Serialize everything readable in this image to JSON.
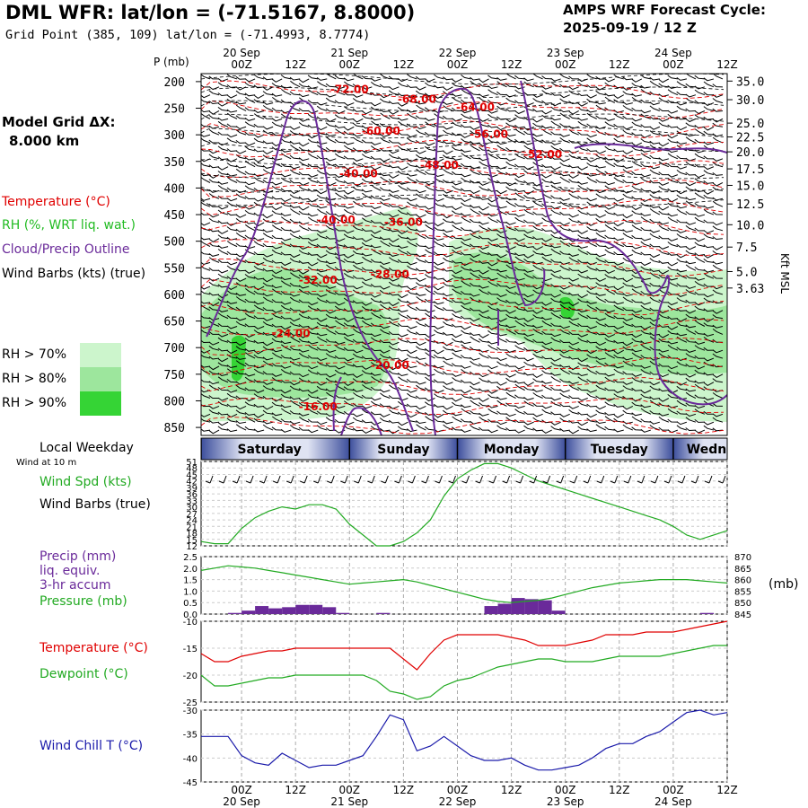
{
  "header": {
    "title": "DML WFR:  lat/lon = (-71.5167, 8.8000)",
    "grid_point": "Grid Point (385, 109) lat/lon = (-71.4993, 8.7774)",
    "cycle_title": "AMPS WRF Forecast Cycle:",
    "cycle_value": "2025-09-19 / 12  Z"
  },
  "sidebar": {
    "grid_dx_label": "Model Grid ΔX:",
    "grid_dx_value": "8.000 km",
    "legend_temperature": "Temperature (°C)",
    "legend_rh": "RH (%, WRT liq. wat.)",
    "legend_cloud": "Cloud/Precip Outline",
    "legend_wind": "Wind Barbs (kts) (true)",
    "rh70": "RH > 70%",
    "rh80": "RH > 80%",
    "rh90": "RH > 90%",
    "local_weekday": "Local Weekday",
    "wind_at_10m": "Wind at 10 m",
    "wind_speed_label": "Wind Spd (kts)",
    "wind_barbs_label": "Wind Barbs (true)",
    "precip_line1": "Precip (mm)",
    "precip_line2": "liq. equiv.",
    "precip_line3": "3-hr accum",
    "pressure_label": "Pressure (mb)",
    "pressure_unit": "(mb)",
    "temperature_label": "Temperature (°C)",
    "dewpoint_label": "Dewpoint (°C)",
    "wind_chill_label": "Wind Chill T (°C)",
    "p_axis_label": "P (mb)",
    "height_axis_label": "Kft MSL"
  },
  "colors": {
    "temperature": "#e00000",
    "rh_label": "#22bb22",
    "cloud_outline": "#6a2a9a",
    "rh70": "#ccf5cc",
    "rh80": "#9de69d",
    "rh90": "#35d435",
    "wind_speed": "#22aa22",
    "pressure": "#22aa22",
    "precip": "#6a2a9a",
    "dewpoint": "#22aa22",
    "wind_chill": "#1a1aaa"
  },
  "chart_data": {
    "type": "line",
    "time_axis": {
      "x_hours": [
        0,
        12,
        24,
        36,
        48,
        60,
        72,
        84,
        96,
        108
      ],
      "tick_labels": [
        "00Z",
        "12Z",
        "00Z",
        "12Z",
        "00Z",
        "12Z",
        "00Z",
        "12Z",
        "00Z",
        "12Z"
      ],
      "date_labels": [
        {
          "hour": 0,
          "label": "20 Sep"
        },
        {
          "hour": 24,
          "label": "21 Sep"
        },
        {
          "hour": 48,
          "label": "22 Sep"
        },
        {
          "hour": 72,
          "label": "23 Sep"
        },
        {
          "hour": 96,
          "label": "24 Sep"
        }
      ],
      "xlim": [
        -9,
        108
      ]
    },
    "weekdays": [
      {
        "name": "Saturday",
        "start": -9,
        "end": 24
      },
      {
        "name": "Sunday",
        "start": 24,
        "end": 48
      },
      {
        "name": "Monday",
        "start": 48,
        "end": 72
      },
      {
        "name": "Tuesday",
        "start": 72,
        "end": 96
      },
      {
        "name": "Wednesday",
        "start": 96,
        "end": 120
      }
    ],
    "cross_section": {
      "pressure_ticks": [
        200,
        250,
        300,
        350,
        400,
        450,
        500,
        550,
        600,
        650,
        700,
        750,
        800,
        850
      ],
      "pressure_range": [
        185,
        865
      ],
      "height_ticks": [
        {
          "label": "35.0",
          "p": 199
        },
        {
          "label": "30.0",
          "p": 234
        },
        {
          "label": "25.0",
          "p": 278
        },
        {
          "label": "22.5",
          "p": 304
        },
        {
          "label": "20.0",
          "p": 332
        },
        {
          "label": "17.5",
          "p": 364
        },
        {
          "label": "15.0",
          "p": 395
        },
        {
          "label": "12.5",
          "p": 430
        },
        {
          "label": "10.0",
          "p": 469
        },
        {
          "label": "7.5",
          "p": 511
        },
        {
          "label": "5.0",
          "p": 557
        },
        {
          "label": "3.63",
          "p": 588
        }
      ],
      "temperature_labels": [
        {
          "text": "-72.00",
          "t": 24,
          "p": 221
        },
        {
          "text": "-68.00",
          "t": 39,
          "p": 240
        },
        {
          "text": "-64.00",
          "t": 52,
          "p": 255
        },
        {
          "text": "-60.00",
          "t": 31,
          "p": 300
        },
        {
          "text": "-56.00",
          "t": 55,
          "p": 306
        },
        {
          "text": "-52.00",
          "t": 67,
          "p": 344
        },
        {
          "text": "-48.00",
          "t": 44,
          "p": 364
        },
        {
          "text": "-40.00",
          "t": 26,
          "p": 380
        },
        {
          "text": "-36.00",
          "t": 36,
          "p": 471
        },
        {
          "text": "-40.00",
          "t": 21,
          "p": 467
        },
        {
          "text": "-32.00",
          "t": 17,
          "p": 580
        },
        {
          "text": "-28.00",
          "t": 33,
          "p": 569
        },
        {
          "text": "-24.00",
          "t": 11,
          "p": 680
        },
        {
          "text": "-20.00",
          "t": 33,
          "p": 740
        },
        {
          "text": "-16.00",
          "t": 17,
          "p": 818
        }
      ]
    },
    "wind_speed": {
      "ylabel": "Wind Spd (kts)",
      "yticks": [
        12,
        15,
        18,
        21,
        24,
        27,
        30,
        33,
        36,
        39,
        42,
        45,
        48,
        51
      ],
      "ylim": [
        12,
        51
      ],
      "x": [
        -9,
        -6,
        -3,
        0,
        3,
        6,
        9,
        12,
        15,
        18,
        21,
        24,
        27,
        30,
        33,
        36,
        39,
        42,
        45,
        48,
        51,
        54,
        57,
        60,
        63,
        66,
        69,
        72,
        75,
        78,
        81,
        84,
        87,
        90,
        93,
        96,
        99,
        102,
        105,
        108
      ],
      "values": [
        14,
        13,
        13,
        20,
        25,
        28,
        30,
        29,
        31,
        31,
        29,
        22,
        17,
        12,
        12,
        14,
        18,
        24,
        35,
        43,
        47,
        50,
        50,
        48,
        45,
        42,
        40,
        38,
        36,
        34,
        32,
        30,
        28,
        26,
        24,
        21,
        17,
        15,
        17,
        19
      ]
    },
    "precip_pressure": {
      "precip_ylabel": "Precip (mm)",
      "precip_yticks": [
        "0.0",
        "0.5",
        "1.0",
        "1.5",
        "2.0",
        "2.5"
      ],
      "precip_ylim": [
        0,
        2.5
      ],
      "precip_bars": [
        {
          "start": -3,
          "end": 0,
          "value": 0.05
        },
        {
          "start": 0,
          "end": 3,
          "value": 0.15
        },
        {
          "start": 3,
          "end": 6,
          "value": 0.35
        },
        {
          "start": 6,
          "end": 9,
          "value": 0.25
        },
        {
          "start": 9,
          "end": 12,
          "value": 0.3
        },
        {
          "start": 12,
          "end": 15,
          "value": 0.4
        },
        {
          "start": 15,
          "end": 18,
          "value": 0.4
        },
        {
          "start": 18,
          "end": 21,
          "value": 0.3
        },
        {
          "start": 21,
          "end": 24,
          "value": 0.05
        },
        {
          "start": 30,
          "end": 33,
          "value": 0.05
        },
        {
          "start": 54,
          "end": 57,
          "value": 0.35
        },
        {
          "start": 57,
          "end": 60,
          "value": 0.45
        },
        {
          "start": 60,
          "end": 63,
          "value": 0.7
        },
        {
          "start": 63,
          "end": 66,
          "value": 0.65
        },
        {
          "start": 66,
          "end": 69,
          "value": 0.6
        },
        {
          "start": 69,
          "end": 72,
          "value": 0.15
        },
        {
          "start": 102,
          "end": 105,
          "value": 0.05
        }
      ],
      "pressure_yticks": [
        845,
        850,
        855,
        860,
        865,
        870
      ],
      "pressure_ylim": [
        845,
        870
      ],
      "x": [
        -9,
        -6,
        -3,
        0,
        3,
        6,
        9,
        12,
        15,
        18,
        21,
        24,
        27,
        30,
        33,
        36,
        39,
        42,
        45,
        48,
        51,
        54,
        57,
        60,
        63,
        66,
        69,
        72,
        75,
        78,
        81,
        84,
        87,
        90,
        93,
        96,
        99,
        102,
        105,
        108
      ],
      "pressure": [
        864,
        865,
        866,
        865.5,
        865,
        864,
        863,
        862,
        861,
        860,
        859,
        858,
        858.5,
        859,
        859.5,
        860,
        859,
        857.5,
        856,
        854.5,
        853,
        851.5,
        850.5,
        850,
        850.5,
        851,
        852,
        853.5,
        855,
        856.5,
        857.5,
        858.5,
        859,
        859.5,
        860,
        860,
        860,
        859.5,
        859,
        858.5
      ]
    },
    "temperature": {
      "ylabel": "Temperature (°C)",
      "yticks": [
        -25,
        -20,
        -15,
        -10
      ],
      "ylim": [
        -25,
        -10
      ],
      "x": [
        -9,
        -6,
        -3,
        0,
        3,
        6,
        9,
        12,
        15,
        18,
        21,
        24,
        27,
        30,
        33,
        36,
        39,
        42,
        45,
        48,
        51,
        54,
        57,
        60,
        63,
        66,
        69,
        72,
        75,
        78,
        81,
        84,
        87,
        90,
        93,
        96,
        99,
        102,
        105,
        108
      ],
      "temp": [
        -16,
        -17.5,
        -17.5,
        -16.5,
        -16,
        -15.5,
        -15.5,
        -15,
        -15,
        -15,
        -15,
        -15,
        -15,
        -15,
        -15,
        -17,
        -19,
        -16,
        -13.5,
        -12.5,
        -12.5,
        -12.5,
        -12.5,
        -13,
        -13.5,
        -14.5,
        -14.5,
        -14.5,
        -14,
        -13.5,
        -12.5,
        -12.5,
        -12.5,
        -12,
        -12,
        -12,
        -11.5,
        -11,
        -10.5,
        -10
      ],
      "dewpoint": [
        -20,
        -22,
        -22,
        -21.5,
        -21,
        -20.5,
        -20.5,
        -20,
        -20,
        -20,
        -20,
        -20,
        -20,
        -21,
        -23,
        -23.5,
        -24.5,
        -24,
        -22,
        -21,
        -20.5,
        -19.5,
        -18.5,
        -18,
        -17.5,
        -17,
        -17,
        -17.5,
        -17.5,
        -17.5,
        -17,
        -16.5,
        -16.5,
        -16.5,
        -16.5,
        -16,
        -15.5,
        -15,
        -14.5,
        -14.5
      ]
    },
    "wind_chill": {
      "ylabel": "Wind Chill T (°C)",
      "yticks": [
        -45,
        -40,
        -35,
        -30
      ],
      "ylim": [
        -45,
        -30
      ],
      "x": [
        -9,
        -6,
        -3,
        0,
        3,
        6,
        9,
        12,
        15,
        18,
        21,
        24,
        27,
        30,
        33,
        36,
        39,
        42,
        45,
        48,
        51,
        54,
        57,
        60,
        63,
        66,
        69,
        72,
        75,
        78,
        81,
        84,
        87,
        90,
        93,
        96,
        99,
        102,
        105,
        108
      ],
      "values": [
        -35.5,
        -35.5,
        -35.5,
        -39.5,
        -41,
        -41.5,
        -39,
        -40.5,
        -42,
        -41.5,
        -41.5,
        -40.5,
        -39.5,
        -35.5,
        -31,
        -32,
        -38.5,
        -37.5,
        -35.5,
        -37.5,
        -39.5,
        -40.5,
        -40.5,
        -40,
        -41.5,
        -42.5,
        -42.5,
        -42,
        -41.5,
        -40,
        -38,
        -37,
        -37,
        -35.5,
        -34.5,
        -32.5,
        -30.5,
        -30,
        -31,
        -30.5
      ]
    }
  }
}
